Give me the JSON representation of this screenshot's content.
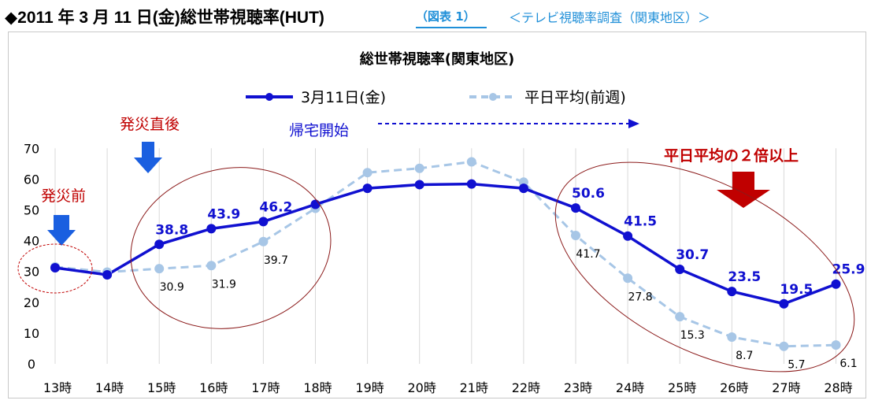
{
  "header": {
    "title": "◆2011 年 3 月 11 日(金)総世帯視聴率(HUT)",
    "figure_label": "（図表 1）",
    "subtitle": "＜テレビ視聴率調査（関東地区）＞"
  },
  "colors": {
    "series_main": "#1010d0",
    "series_avg": "#a7c6e6",
    "annotation_red": "#c00000",
    "arrow_blue": "#1a5fe0",
    "arrow_red": "#c00000",
    "grid": "#d9d9d9"
  },
  "chart_data": {
    "type": "line",
    "title": "総世帯視聴率(関東地区)",
    "categories": [
      "13時",
      "14時",
      "15時",
      "16時",
      "17時",
      "18時",
      "19時",
      "20時",
      "21時",
      "22時",
      "23時",
      "24時",
      "25時",
      "26時",
      "27時",
      "28時"
    ],
    "series": [
      {
        "name": "3月11日(金)",
        "values": [
          31.2,
          28.9,
          38.8,
          43.9,
          46.2,
          51.8,
          57.0,
          58.2,
          58.4,
          57.0,
          50.6,
          41.5,
          30.7,
          23.5,
          19.5,
          25.9
        ]
      },
      {
        "name": "平日平均(前週)",
        "values": [
          31.5,
          29.8,
          30.9,
          31.9,
          39.7,
          50.5,
          62.1,
          63.5,
          65.6,
          59.0,
          41.7,
          27.8,
          15.3,
          8.7,
          5.7,
          6.1
        ]
      }
    ],
    "data_labels_main": [
      {
        "index": 2,
        "text": "38.8"
      },
      {
        "index": 3,
        "text": "43.9"
      },
      {
        "index": 4,
        "text": "46.2"
      },
      {
        "index": 10,
        "text": "50.6"
      },
      {
        "index": 11,
        "text": "41.5"
      },
      {
        "index": 12,
        "text": "30.7"
      },
      {
        "index": 13,
        "text": "23.5"
      },
      {
        "index": 14,
        "text": "19.5"
      },
      {
        "index": 15,
        "text": "25.9"
      }
    ],
    "data_labels_avg": [
      {
        "index": 2,
        "text": "30.9"
      },
      {
        "index": 3,
        "text": "31.9"
      },
      {
        "index": 4,
        "text": "39.7"
      },
      {
        "index": 10,
        "text": "41.7"
      },
      {
        "index": 11,
        "text": "27.8"
      },
      {
        "index": 12,
        "text": "15.3"
      },
      {
        "index": 13,
        "text": "8.7"
      },
      {
        "index": 14,
        "text": "5.7"
      },
      {
        "index": 15,
        "text": "6.1"
      }
    ],
    "yticks": [
      "0",
      "10",
      "20",
      "30",
      "40",
      "50",
      "60",
      "70"
    ],
    "ylim": [
      0,
      70
    ],
    "grid": "vertical",
    "legend_position": "top",
    "annotations": {
      "before": "発災前",
      "just_after": "発災直後",
      "homecoming": "帰宅開始",
      "double": "平日平均の２倍以上"
    }
  }
}
